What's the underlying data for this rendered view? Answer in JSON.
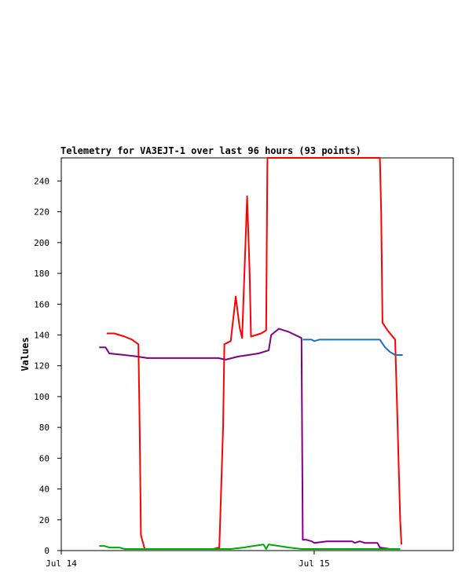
{
  "chart_data": {
    "type": "line",
    "title": "Telemetry for VA3EJT-1 over last 96 hours (93 points)",
    "xlabel": "",
    "ylabel": "Values",
    "ylim": [
      0,
      255
    ],
    "xlim": [
      0,
      1.55
    ],
    "x_ticks": [
      {
        "x": 0,
        "label": "Jul 14"
      },
      {
        "x": 1,
        "label": "Jul 15"
      }
    ],
    "y_ticks": [
      0,
      20,
      40,
      60,
      80,
      100,
      120,
      140,
      160,
      180,
      200,
      220,
      240
    ],
    "grid": false,
    "legend": "none",
    "series": [
      {
        "color": "#ff0000",
        "points": [
          [
            0.18,
            141
          ],
          [
            0.21,
            141
          ],
          [
            0.25,
            139
          ],
          [
            0.28,
            137
          ],
          [
            0.305,
            134
          ],
          [
            0.31,
            80
          ],
          [
            0.315,
            10
          ],
          [
            0.33,
            1
          ],
          [
            0.4,
            1
          ],
          [
            0.5,
            1
          ],
          [
            0.6,
            1
          ],
          [
            0.625,
            2
          ],
          [
            0.64,
            80
          ],
          [
            0.645,
            134
          ],
          [
            0.67,
            136
          ],
          [
            0.69,
            165
          ],
          [
            0.705,
            145
          ],
          [
            0.715,
            138
          ],
          [
            0.735,
            230
          ],
          [
            0.745,
            180
          ],
          [
            0.75,
            139
          ],
          [
            0.77,
            140
          ],
          [
            0.79,
            141
          ],
          [
            0.81,
            143
          ],
          [
            0.815,
            255
          ],
          [
            0.9,
            255
          ],
          [
            1.0,
            255
          ],
          [
            1.2,
            255
          ],
          [
            1.26,
            255
          ],
          [
            1.265,
            220
          ],
          [
            1.27,
            148
          ],
          [
            1.29,
            143
          ],
          [
            1.32,
            137
          ],
          [
            1.33,
            80
          ],
          [
            1.34,
            20
          ],
          [
            1.345,
            4
          ]
        ]
      },
      {
        "color": "#800080",
        "points": [
          [
            0.15,
            132
          ],
          [
            0.175,
            132
          ],
          [
            0.19,
            128
          ],
          [
            0.25,
            127
          ],
          [
            0.3,
            126
          ],
          [
            0.34,
            125
          ],
          [
            0.5,
            125
          ],
          [
            0.62,
            125
          ],
          [
            0.65,
            124
          ],
          [
            0.7,
            126
          ],
          [
            0.74,
            127
          ],
          [
            0.78,
            128
          ],
          [
            0.82,
            130
          ],
          [
            0.83,
            140
          ],
          [
            0.86,
            144
          ],
          [
            0.9,
            142
          ],
          [
            0.95,
            138
          ],
          [
            0.955,
            7
          ],
          [
            0.97,
            7
          ],
          [
            0.99,
            6
          ],
          [
            1.0,
            5
          ],
          [
            1.05,
            6
          ],
          [
            1.1,
            6
          ],
          [
            1.15,
            6
          ],
          [
            1.16,
            5
          ],
          [
            1.18,
            6
          ],
          [
            1.2,
            5
          ],
          [
            1.23,
            5
          ],
          [
            1.25,
            5
          ],
          [
            1.26,
            2
          ],
          [
            1.3,
            1
          ],
          [
            1.34,
            1
          ]
        ]
      },
      {
        "color": "#1f6fbf",
        "points": [
          [
            0.955,
            137
          ],
          [
            0.99,
            137
          ],
          [
            1.0,
            136
          ],
          [
            1.02,
            137
          ],
          [
            1.1,
            137
          ],
          [
            1.2,
            137
          ],
          [
            1.26,
            137
          ],
          [
            1.28,
            132
          ],
          [
            1.3,
            129
          ],
          [
            1.32,
            127
          ],
          [
            1.35,
            127
          ]
        ]
      },
      {
        "color": "#00aa00",
        "points": [
          [
            0.15,
            3
          ],
          [
            0.17,
            3
          ],
          [
            0.19,
            2
          ],
          [
            0.23,
            2
          ],
          [
            0.25,
            1
          ],
          [
            0.3,
            1
          ],
          [
            0.35,
            1
          ],
          [
            0.5,
            1
          ],
          [
            0.62,
            1
          ],
          [
            0.67,
            1
          ],
          [
            0.72,
            2
          ],
          [
            0.76,
            3
          ],
          [
            0.8,
            4
          ],
          [
            0.81,
            1
          ],
          [
            0.82,
            4
          ],
          [
            0.86,
            3
          ],
          [
            0.9,
            2
          ],
          [
            0.95,
            1
          ],
          [
            1.0,
            1
          ],
          [
            1.2,
            1
          ],
          [
            1.34,
            1
          ]
        ]
      }
    ]
  }
}
